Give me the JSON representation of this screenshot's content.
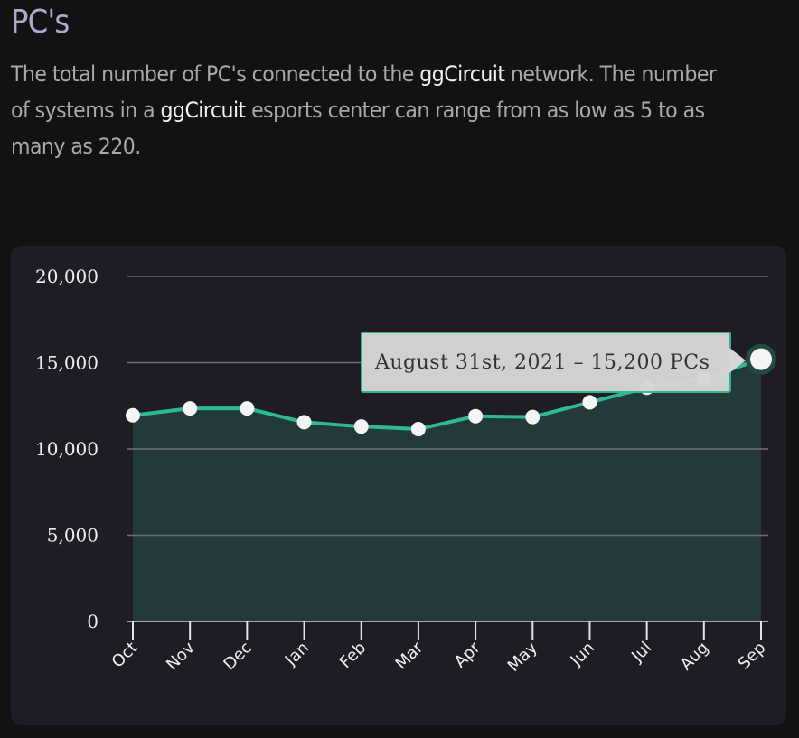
{
  "header": {
    "title": "PC's",
    "description_parts": [
      "The total number of PC's connected to the ",
      "ggCircuit",
      " network. The number of systems in a ",
      "ggCircuit",
      " esports center can range from as low as 5 to as many as 220."
    ]
  },
  "tooltip": {
    "text": "August 31st, 2021 – 15,200 PCs"
  },
  "colors": {
    "accent": "#2fb895",
    "area_fill": "#233a3d",
    "title": "#b3a5cf",
    "card_bg": "#1f1c26",
    "page_bg": "#121212"
  },
  "chart_data": {
    "type": "area",
    "title": "PC's",
    "xlabel": "",
    "ylabel": "",
    "categories": [
      "Oct",
      "Nov",
      "Dec",
      "Jan",
      "Feb",
      "Mar",
      "Apr",
      "May",
      "Jun",
      "Jul",
      "Aug",
      "Sep"
    ],
    "values": [
      11950,
      12350,
      12350,
      11550,
      11300,
      11150,
      11900,
      11850,
      12700,
      13550,
      14100,
      15200
    ],
    "ylim": [
      0,
      20000
    ],
    "yticks": [
      "0",
      "5,000",
      "10,000",
      "15,000",
      "20,000"
    ],
    "grid": true,
    "legend": "none",
    "highlighted_point": {
      "category": "Sep",
      "value": 15200,
      "label": "August 31st, 2021 – 15,200 PCs"
    }
  }
}
